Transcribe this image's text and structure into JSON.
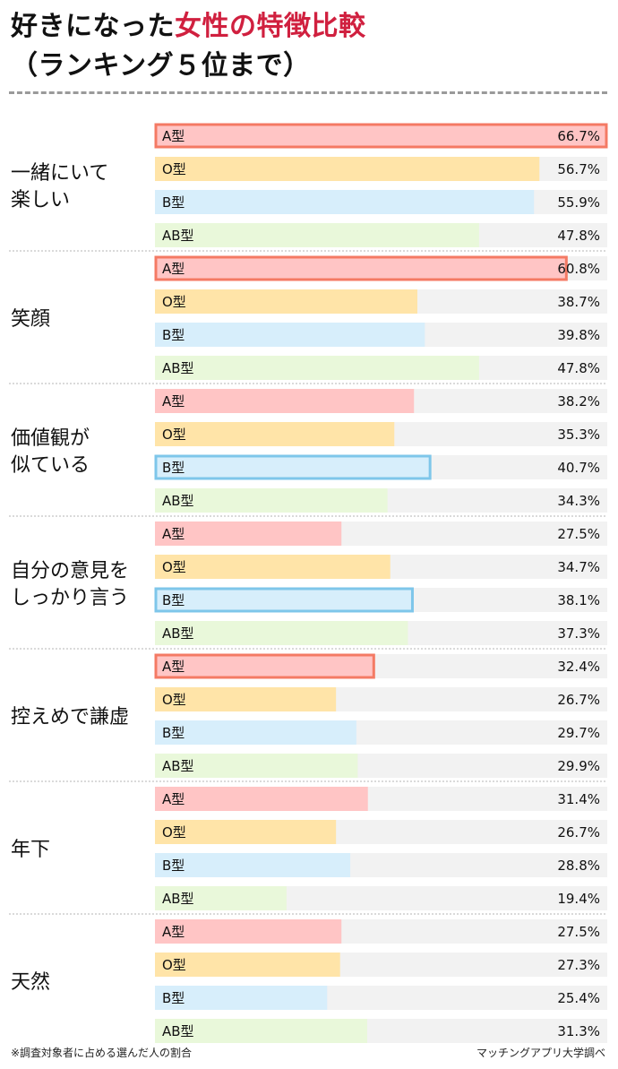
{
  "header": {
    "title_prefix": "好きになった",
    "title_accent": "女性の特徴比較",
    "subtitle": "（ランキング５位まで）"
  },
  "colors": {
    "A": "#ffc5c5",
    "O": "#ffe4a8",
    "B": "#d7eefb",
    "AB": "#e9f8da",
    "track": "#f2f2f2",
    "highlight_A": "#f47a64",
    "highlight_B": "#7ec6ea",
    "accent": "#d0203f"
  },
  "chart_data": {
    "type": "bar",
    "orientation": "horizontal",
    "unit": "%",
    "xlim": [
      0,
      66.7
    ],
    "series_names": [
      "A型",
      "O型",
      "B型",
      "AB型"
    ],
    "groups": [
      {
        "label_lines": [
          "一緒にいて",
          "楽しい"
        ],
        "values": [
          66.7,
          56.7,
          55.9,
          47.8
        ],
        "labels": [
          "66.7%",
          "56.7%",
          "55.9%",
          "47.8%"
        ],
        "highlight": 0
      },
      {
        "label_lines": [
          "笑顔"
        ],
        "values": [
          60.8,
          38.7,
          39.8,
          47.8
        ],
        "labels": [
          "60.8%",
          "38.7%",
          "39.8%",
          "47.8%"
        ],
        "highlight": 0
      },
      {
        "label_lines": [
          "価値観が",
          "似ている"
        ],
        "values": [
          38.2,
          35.3,
          40.7,
          34.3
        ],
        "labels": [
          "38.2%",
          "35.3%",
          "40.7%",
          "34.3%"
        ],
        "highlight": 2
      },
      {
        "label_lines": [
          "自分の意見を",
          "しっかり言う"
        ],
        "values": [
          27.5,
          34.7,
          38.1,
          37.3
        ],
        "labels": [
          "27.5%",
          "34.7%",
          "38.1%",
          "37.3%"
        ],
        "highlight": 2
      },
      {
        "label_lines": [
          "控えめで謙虚"
        ],
        "values": [
          32.4,
          26.7,
          29.7,
          29.9
        ],
        "labels": [
          "32.4%",
          "26.7%",
          "29.7%",
          "29.9%"
        ],
        "highlight": 0
      },
      {
        "label_lines": [
          "年下"
        ],
        "values": [
          31.4,
          26.7,
          28.8,
          19.4
        ],
        "labels": [
          "31.4%",
          "26.7%",
          "28.8%",
          "19.4%"
        ],
        "highlight": null
      },
      {
        "label_lines": [
          "天然"
        ],
        "values": [
          27.5,
          27.3,
          25.4,
          31.3
        ],
        "labels": [
          "27.5%",
          "27.3%",
          "25.4%",
          "31.3%"
        ],
        "highlight": null
      }
    ]
  },
  "footer": {
    "note": "※調査対象者に占める選んだ人の割合",
    "source": "マッチングアプリ大学調べ"
  }
}
